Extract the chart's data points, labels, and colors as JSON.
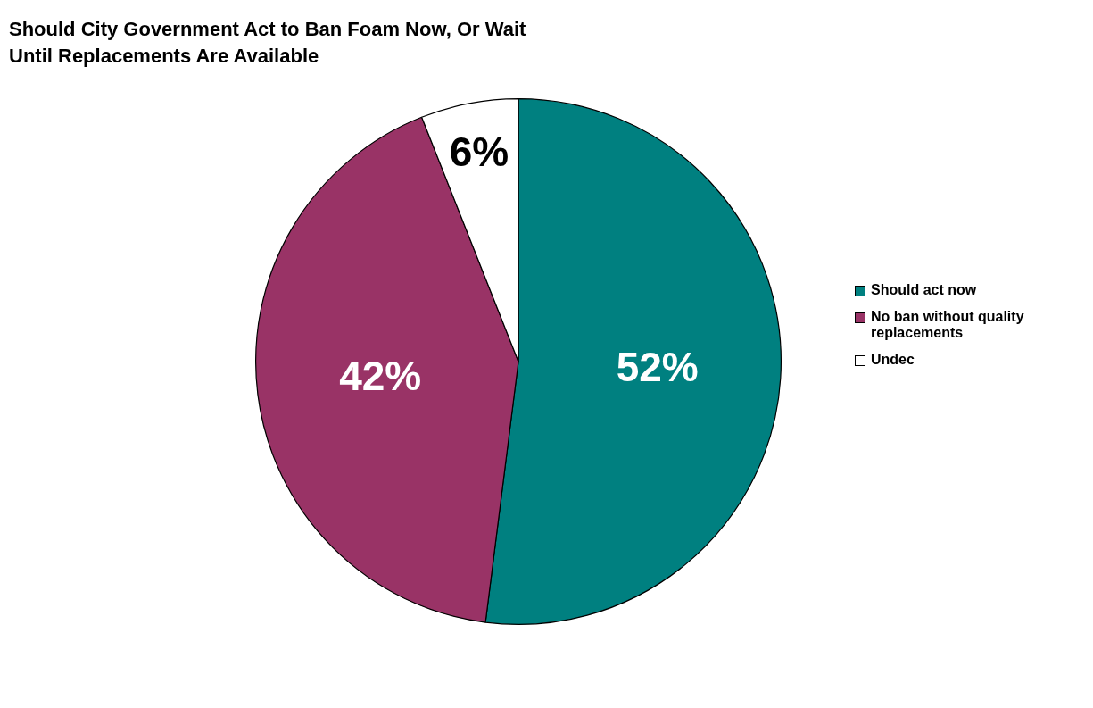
{
  "chart_data": {
    "type": "pie",
    "title": "Should City Government Act to Ban Foam Now, Or Wait Until Replacements Are Available",
    "categories": [
      "Should act now",
      "No ban without quality replacements",
      "Undec"
    ],
    "values": [
      52,
      42,
      6
    ],
    "value_labels": [
      "52%",
      "42%",
      "6%"
    ],
    "colors": [
      "#008080",
      "#993366",
      "#ffffff"
    ],
    "legend": "right"
  }
}
